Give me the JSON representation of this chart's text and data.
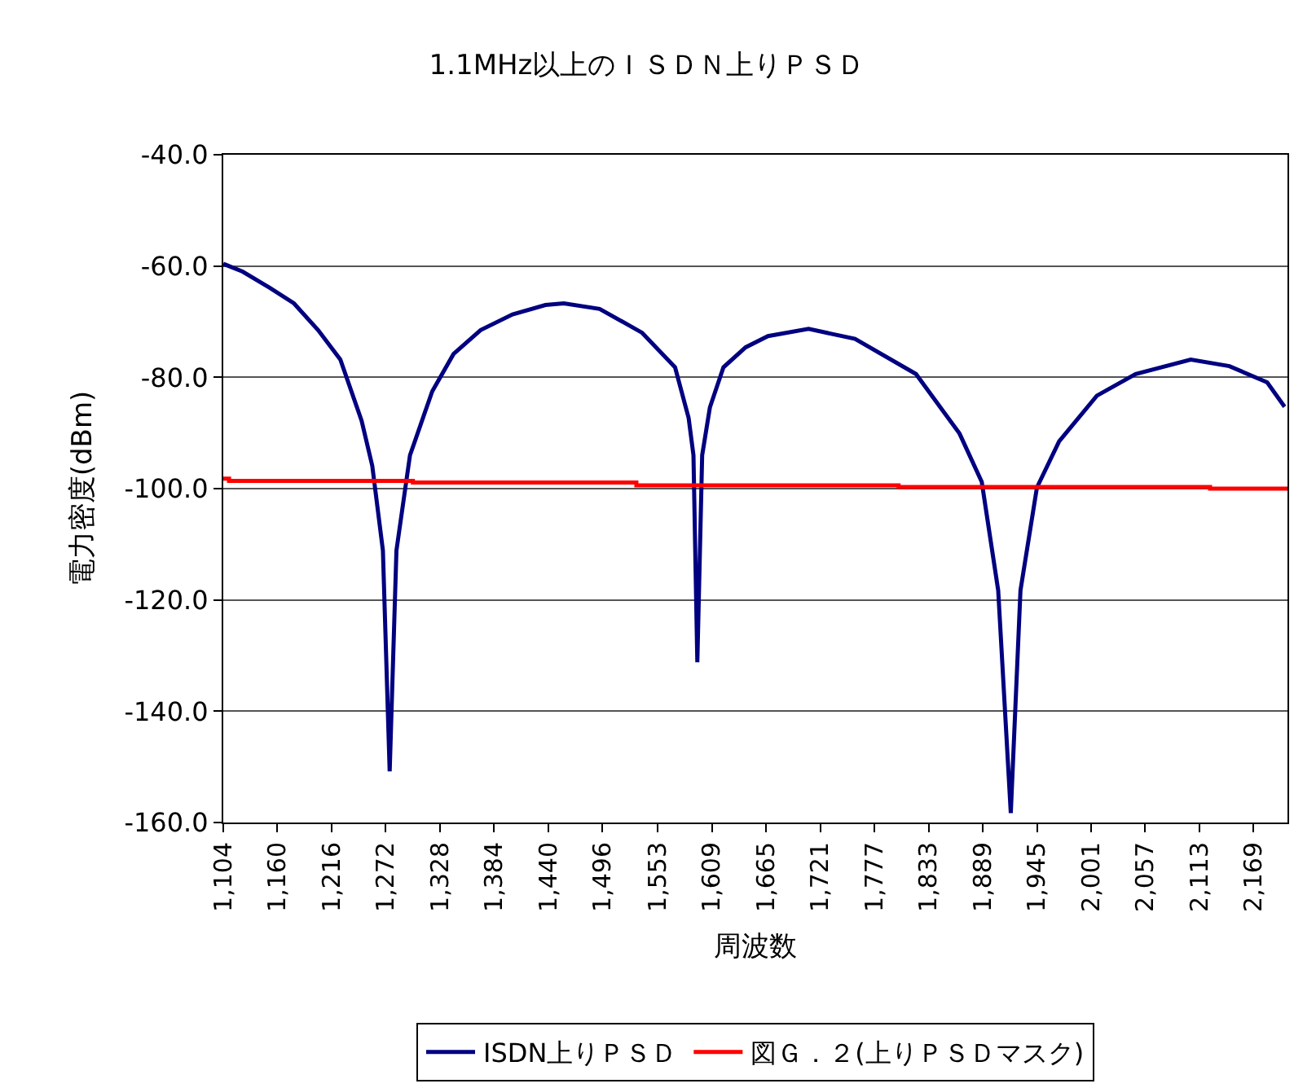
{
  "chart_data": {
    "type": "line",
    "title": "1.1MHz以上のＩＳＤＮ上りＰＳＤ",
    "xlabel": "周波数",
    "ylabel": "電力密度(dBm)",
    "xlim": [
      1104,
      2204
    ],
    "ylim": [
      -160,
      -40
    ],
    "xticks": [
      {
        "value": 1104,
        "label": "1,104"
      },
      {
        "value": 1160,
        "label": "1,160"
      },
      {
        "value": 1216,
        "label": "1,216"
      },
      {
        "value": 1272,
        "label": "1,272"
      },
      {
        "value": 1328,
        "label": "1,328"
      },
      {
        "value": 1384,
        "label": "1,384"
      },
      {
        "value": 1440,
        "label": "1,440"
      },
      {
        "value": 1496,
        "label": "1,496"
      },
      {
        "value": 1553,
        "label": "1,553"
      },
      {
        "value": 1609,
        "label": "1,609"
      },
      {
        "value": 1665,
        "label": "1,665"
      },
      {
        "value": 1721,
        "label": "1,721"
      },
      {
        "value": 1777,
        "label": "1,777"
      },
      {
        "value": 1833,
        "label": "1,833"
      },
      {
        "value": 1889,
        "label": "1,889"
      },
      {
        "value": 1945,
        "label": "1,945"
      },
      {
        "value": 2001,
        "label": "2,001"
      },
      {
        "value": 2057,
        "label": "2,057"
      },
      {
        "value": 2113,
        "label": "2,113"
      },
      {
        "value": 2169,
        "label": "2,169"
      }
    ],
    "yticks": [
      {
        "value": -40,
        "label": "-40.0"
      },
      {
        "value": -60,
        "label": "-60.0"
      },
      {
        "value": -80,
        "label": "-80.0"
      },
      {
        "value": -100,
        "label": "-100.0"
      },
      {
        "value": -120,
        "label": "-120.0"
      },
      {
        "value": -140,
        "label": "-140.0"
      },
      {
        "value": -160,
        "label": "-160.0"
      }
    ],
    "grid": "y",
    "legend": "bottom",
    "marker": "none",
    "line_style": "solid",
    "series": [
      {
        "name": "ISDN上りＰＳＤ",
        "color": "#000080",
        "x": [
          1104,
          1124,
          1152,
          1177,
          1202,
          1225,
          1247,
          1258,
          1269,
          1276,
          1283,
          1297,
          1320,
          1342,
          1370,
          1403,
          1437,
          1456,
          1493,
          1537,
          1571,
          1585,
          1590,
          1594,
          1599,
          1607,
          1621,
          1644,
          1667,
          1709,
          1757,
          1820,
          1865,
          1888,
          1905,
          1918,
          1928,
          1945,
          1968,
          2007,
          2047,
          2104,
          2144,
          2183,
          2201
        ],
        "values": [
          -59.6,
          -61.0,
          -63.9,
          -66.7,
          -71.5,
          -76.8,
          -87.8,
          -95.9,
          -111.1,
          -150.8,
          -111.1,
          -94.0,
          -82.5,
          -75.8,
          -71.5,
          -68.7,
          -67.0,
          -66.7,
          -67.7,
          -72.0,
          -78.2,
          -87.3,
          -94.0,
          -131.2,
          -94.0,
          -85.4,
          -78.2,
          -74.6,
          -72.6,
          -71.3,
          -73.1,
          -79.4,
          -90.1,
          -98.8,
          -118.3,
          -158.3,
          -118.3,
          -99.8,
          -91.5,
          -83.3,
          -79.4,
          -76.8,
          -78.0,
          -80.9,
          -85.3
        ]
      },
      {
        "name": "図Ｇ．２(上りＰＳＤマスク)",
        "color": "#ff0000",
        "type": "step",
        "x": [
          1104,
          1110,
          1300,
          1531,
          1802,
          2124,
          2204
        ],
        "values": [
          -98.2,
          -98.6,
          -98.9,
          -99.4,
          -99.7,
          -100.0,
          -100.0
        ]
      }
    ]
  }
}
